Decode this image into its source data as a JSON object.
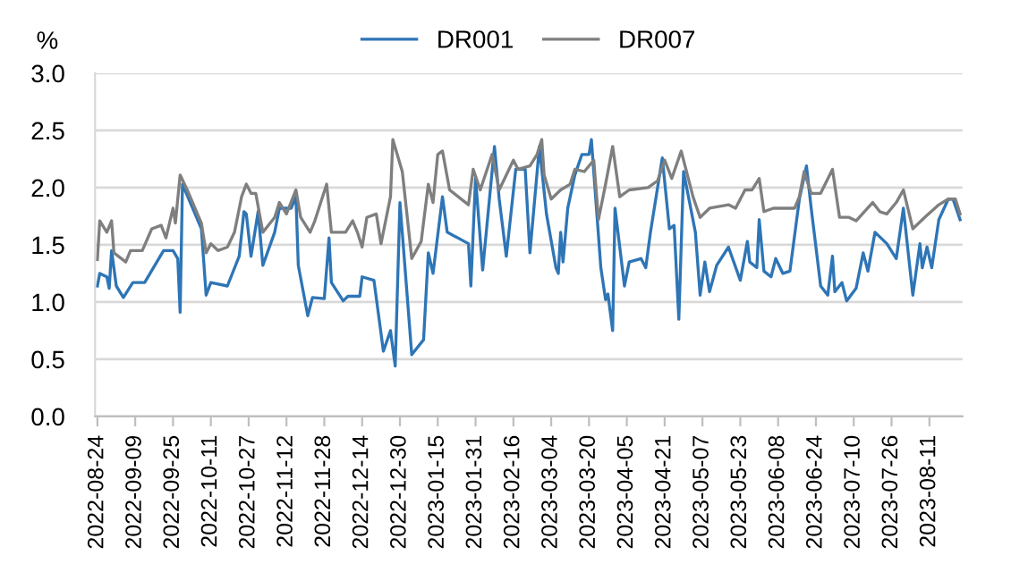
{
  "chart_data": {
    "type": "line",
    "ylabel": "%",
    "legend": "top",
    "grid": "y",
    "line_style": "solid",
    "marker": "none",
    "xlim": [
      "2022-08-23",
      "2023-08-25"
    ],
    "xticks": [
      "2022-08-24",
      "2022-09-09",
      "2022-09-25",
      "2022-10-11",
      "2022-10-27",
      "2022-11-12",
      "2022-11-28",
      "2022-12-14",
      "2022-12-30",
      "2023-01-15",
      "2023-01-31",
      "2023-02-16",
      "2023-03-04",
      "2023-03-20",
      "2023-04-05",
      "2023-04-21",
      "2023-05-07",
      "2023-05-23",
      "2023-06-08",
      "2023-06-24",
      "2023-07-10",
      "2023-07-26",
      "2023-08-11"
    ],
    "ylim": [
      0,
      3
    ],
    "yticks": [
      {
        "value": 0,
        "label": "0.0"
      },
      {
        "value": 0.5,
        "label": "0.5"
      },
      {
        "value": 1,
        "label": "1.0"
      },
      {
        "value": 1.5,
        "label": "1.5"
      },
      {
        "value": 2,
        "label": "2.0"
      },
      {
        "value": 2.5,
        "label": "2.5"
      },
      {
        "value": 3,
        "label": "3.0"
      }
    ],
    "series": [
      {
        "name": "DR001",
        "color": "#2e75b6",
        "x": [
          "2022-08-24",
          "2022-08-25",
          "2022-08-28",
          "2022-08-29",
          "2022-08-30",
          "2022-09-01",
          "2022-09-04",
          "2022-09-08",
          "2022-09-13",
          "2022-09-21",
          "2022-09-25",
          "2022-09-27",
          "2022-09-28",
          "2022-09-29",
          "2022-10-07",
          "2022-10-09",
          "2022-10-11",
          "2022-10-18",
          "2022-10-23",
          "2022-10-25",
          "2022-10-26",
          "2022-10-28",
          "2022-10-31",
          "2022-11-02",
          "2022-11-07",
          "2022-11-09",
          "2022-11-14",
          "2022-11-16",
          "2022-11-17",
          "2022-11-21",
          "2022-11-23",
          "2022-11-28",
          "2022-11-30",
          "2022-12-01",
          "2022-12-06",
          "2022-12-08",
          "2022-12-13",
          "2022-12-14",
          "2022-12-19",
          "2022-12-23",
          "2022-12-26",
          "2022-12-28",
          "2022-12-30",
          "2023-01-04",
          "2023-01-09",
          "2023-01-11",
          "2023-01-13",
          "2023-01-17",
          "2023-01-19",
          "2023-01-28",
          "2023-01-29",
          "2023-01-31",
          "2023-02-03",
          "2023-02-08",
          "2023-02-10",
          "2023-02-13",
          "2023-02-17",
          "2023-02-21",
          "2023-02-23",
          "2023-02-27",
          "2023-03-02",
          "2023-03-06",
          "2023-03-07",
          "2023-03-08",
          "2023-03-09",
          "2023-03-11",
          "2023-03-14",
          "2023-03-17",
          "2023-03-20",
          "2023-03-21",
          "2023-03-25",
          "2023-03-27",
          "2023-03-28",
          "2023-03-30",
          "2023-03-31",
          "2023-04-04",
          "2023-04-06",
          "2023-04-11",
          "2023-04-13",
          "2023-04-15",
          "2023-04-20",
          "2023-04-23",
          "2023-04-25",
          "2023-04-27",
          "2023-04-29",
          "2023-05-04",
          "2023-05-06",
          "2023-05-08",
          "2023-05-10",
          "2023-05-13",
          "2023-05-18",
          "2023-05-23",
          "2023-05-26",
          "2023-05-27",
          "2023-05-30",
          "2023-05-31",
          "2023-06-02",
          "2023-06-05",
          "2023-06-07",
          "2023-06-10",
          "2023-06-13",
          "2023-06-17",
          "2023-06-20",
          "2023-06-22",
          "2023-06-26",
          "2023-06-29",
          "2023-07-01",
          "2023-07-02",
          "2023-07-05",
          "2023-07-07",
          "2023-07-11",
          "2023-07-14",
          "2023-07-16",
          "2023-07-19",
          "2023-07-24",
          "2023-07-28",
          "2023-07-31",
          "2023-08-04",
          "2023-08-07",
          "2023-08-08",
          "2023-08-10",
          "2023-08-12",
          "2023-08-15",
          "2023-08-19",
          "2023-08-21",
          "2023-08-24"
        ],
        "values": [
          1.14,
          1.25,
          1.22,
          1.12,
          1.45,
          1.14,
          1.04,
          1.17,
          1.17,
          1.45,
          1.45,
          1.38,
          0.91,
          2.03,
          1.64,
          1.06,
          1.17,
          1.14,
          1.4,
          1.79,
          1.77,
          1.4,
          1.79,
          1.32,
          1.61,
          1.82,
          1.82,
          1.92,
          1.32,
          0.88,
          1.04,
          1.03,
          1.56,
          1.17,
          1.01,
          1.05,
          1.05,
          1.22,
          1.19,
          0.57,
          0.75,
          0.44,
          1.87,
          0.54,
          0.67,
          1.43,
          1.25,
          1.92,
          1.61,
          1.51,
          1.14,
          2.08,
          1.28,
          2.36,
          1.9,
          1.4,
          2.16,
          2.16,
          1.43,
          2.36,
          1.77,
          1.3,
          1.25,
          1.61,
          1.35,
          1.82,
          2.11,
          2.29,
          2.29,
          2.42,
          1.3,
          1.02,
          1.07,
          0.75,
          1.82,
          1.14,
          1.35,
          1.38,
          1.3,
          1.61,
          2.26,
          1.64,
          1.67,
          0.85,
          2.14,
          1.61,
          1.06,
          1.35,
          1.09,
          1.32,
          1.48,
          1.19,
          1.53,
          1.35,
          1.3,
          1.72,
          1.27,
          1.22,
          1.38,
          1.25,
          1.27,
          1.9,
          2.19,
          1.82,
          1.14,
          1.06,
          1.4,
          1.09,
          1.17,
          1.01,
          1.12,
          1.43,
          1.27,
          1.61,
          1.51,
          1.38,
          1.82,
          1.06,
          1.51,
          1.3,
          1.48,
          1.3,
          1.72,
          1.9,
          1.9,
          1.72
        ]
      },
      {
        "name": "DR007",
        "color": "#7f7f7f",
        "x": [
          "2022-08-24",
          "2022-08-25",
          "2022-08-28",
          "2022-08-30",
          "2022-08-31",
          "2022-09-05",
          "2022-09-07",
          "2022-09-12",
          "2022-09-16",
          "2022-09-20",
          "2022-09-22",
          "2022-09-25",
          "2022-09-26",
          "2022-09-28",
          "2022-10-01",
          "2022-10-07",
          "2022-10-09",
          "2022-10-11",
          "2022-10-14",
          "2022-10-18",
          "2022-10-21",
          "2022-10-24",
          "2022-10-26",
          "2022-10-28",
          "2022-10-30",
          "2022-11-02",
          "2022-11-07",
          "2022-11-09",
          "2022-11-12",
          "2022-11-16",
          "2022-11-18",
          "2022-11-22",
          "2022-11-24",
          "2022-11-29",
          "2022-12-01",
          "2022-12-07",
          "2022-12-10",
          "2022-12-12",
          "2022-12-14",
          "2022-12-16",
          "2022-12-20",
          "2022-12-22",
          "2022-12-26",
          "2022-12-27",
          "2022-12-31",
          "2023-01-04",
          "2023-01-08",
          "2023-01-11",
          "2023-01-13",
          "2023-01-15",
          "2023-01-17",
          "2023-01-20",
          "2023-01-28",
          "2023-01-30",
          "2023-02-02",
          "2023-02-07",
          "2023-02-10",
          "2023-02-16",
          "2023-02-18",
          "2023-02-23",
          "2023-02-26",
          "2023-02-28",
          "2023-03-01",
          "2023-03-04",
          "2023-03-08",
          "2023-03-12",
          "2023-03-14",
          "2023-03-18",
          "2023-03-22",
          "2023-03-24",
          "2023-03-27",
          "2023-03-30",
          "2023-04-02",
          "2023-04-06",
          "2023-04-14",
          "2023-04-18",
          "2023-04-21",
          "2023-04-24",
          "2023-04-28",
          "2023-05-03",
          "2023-05-06",
          "2023-05-10",
          "2023-05-18",
          "2023-05-21",
          "2023-05-25",
          "2023-05-28",
          "2023-05-31",
          "2023-06-02",
          "2023-06-06",
          "2023-06-15",
          "2023-06-17",
          "2023-06-19",
          "2023-06-22",
          "2023-06-26",
          "2023-07-01",
          "2023-07-04",
          "2023-07-08",
          "2023-07-11",
          "2023-07-18",
          "2023-07-21",
          "2023-07-24",
          "2023-07-28",
          "2023-07-31",
          "2023-08-04",
          "2023-08-09",
          "2023-08-15",
          "2023-08-19",
          "2023-08-22",
          "2023-08-24"
        ],
        "values": [
          1.37,
          1.71,
          1.61,
          1.71,
          1.43,
          1.35,
          1.45,
          1.45,
          1.64,
          1.67,
          1.56,
          1.82,
          1.69,
          2.11,
          1.98,
          1.69,
          1.43,
          1.51,
          1.45,
          1.48,
          1.61,
          1.92,
          2.03,
          1.95,
          1.95,
          1.61,
          1.74,
          1.87,
          1.77,
          1.98,
          1.74,
          1.61,
          1.71,
          2.03,
          1.61,
          1.61,
          1.71,
          1.61,
          1.48,
          1.74,
          1.77,
          1.51,
          1.92,
          2.42,
          2.14,
          1.38,
          1.53,
          2.03,
          1.87,
          2.29,
          2.32,
          1.98,
          1.85,
          2.16,
          1.98,
          2.29,
          1.98,
          2.24,
          2.16,
          2.19,
          2.29,
          2.42,
          2.11,
          1.9,
          1.98,
          2.03,
          2.16,
          2.14,
          2.24,
          1.72,
          2.03,
          2.36,
          1.92,
          1.98,
          2.0,
          2.06,
          2.24,
          2.08,
          2.32,
          1.92,
          1.74,
          1.82,
          1.85,
          1.82,
          1.98,
          1.98,
          2.08,
          1.79,
          1.82,
          1.82,
          1.92,
          2.14,
          1.95,
          1.95,
          2.16,
          1.74,
          1.74,
          1.71,
          1.87,
          1.79,
          1.77,
          1.87,
          1.98,
          1.64,
          1.74,
          1.85,
          1.9,
          1.9,
          1.77
        ]
      }
    ]
  }
}
